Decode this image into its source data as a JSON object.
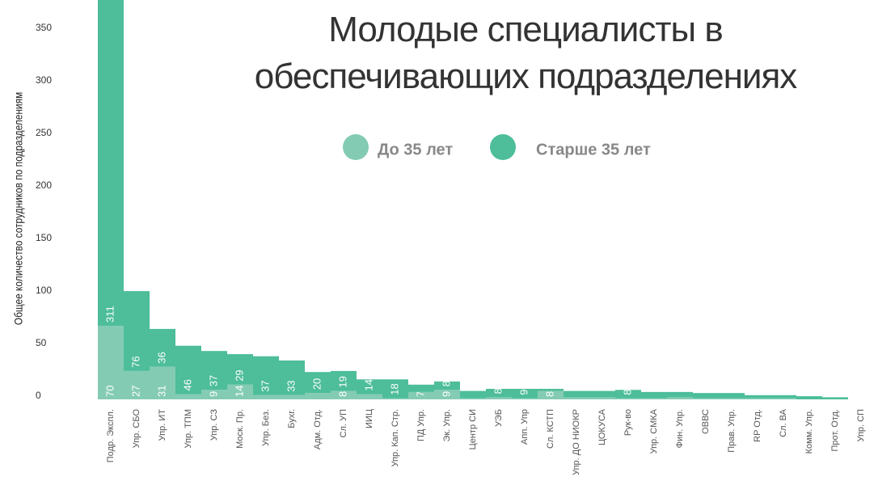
{
  "chart_data": {
    "type": "stacked_bar",
    "title": "Молодые специалисты в обеспечивающих подразделениях",
    "y_label": "Общее количество сотрудников по подразделениям",
    "categories": [
      "Подр. Экспл.",
      "Упр. СБО",
      "Упр. ИТ",
      "Упр. ТПМ",
      "Упр. СЗ",
      "Моск. Пр.",
      "Упр. Без.",
      "Бухг.",
      "Адм. Отд.",
      "Сл. УП",
      "ИИЦ",
      "Упр. Кап. Стр.",
      "ПД Упр.",
      "Эк. Упр.",
      "Центр СИ",
      "УЭБ",
      "Апп. Упр",
      "Сл. КСТП",
      "Упр. ДО НИОКР",
      "ЦОКУСА",
      "Рук-во",
      "Упр. СМКА",
      "Фин. Упр.",
      "ОВВС",
      "Прав. Упр.",
      "RP Отд.",
      "Сл. ВА",
      "Комм. Упр.",
      "Прот. Отд.",
      "Упр. СП"
    ],
    "series": [
      {
        "name": "До 35 лет",
        "color": "#84cbb4",
        "values": [
          70,
          27,
          31,
          5,
          9,
          14,
          4,
          4,
          6,
          8,
          5,
          1,
          7,
          9,
          1,
          2,
          1,
          8,
          2,
          2,
          1,
          1,
          2,
          1,
          1,
          1,
          1,
          0,
          0,
          0
        ],
        "value_labels": [
          "70",
          "27",
          "31",
          null,
          "9",
          "14",
          null,
          null,
          null,
          "8",
          null,
          null,
          "7",
          "9",
          null,
          null,
          null,
          "8",
          null,
          null,
          null,
          null,
          null,
          null,
          null,
          null,
          null,
          null,
          null,
          null
        ]
      },
      {
        "name": "Старше 35 лет",
        "color": "#4dbd9a",
        "values": [
          311,
          76,
          36,
          46,
          37,
          29,
          37,
          33,
          20,
          19,
          14,
          18,
          7,
          8,
          7,
          8,
          9,
          2,
          6,
          6,
          8,
          6,
          5,
          5,
          5,
          3,
          3,
          3,
          2,
          0
        ],
        "value_labels": [
          "311",
          "76",
          "36",
          "46",
          "37",
          "29",
          "37",
          "33",
          "20",
          "19",
          "14",
          "18",
          null,
          "8",
          null,
          "8",
          "9",
          null,
          null,
          null,
          "8",
          null,
          null,
          null,
          null,
          null,
          null,
          null,
          null,
          null
        ]
      }
    ],
    "ylim": [
      0,
      373
    ],
    "yticks": [
      0,
      50,
      100,
      150,
      200,
      250,
      300,
      350
    ],
    "grid": false
  }
}
